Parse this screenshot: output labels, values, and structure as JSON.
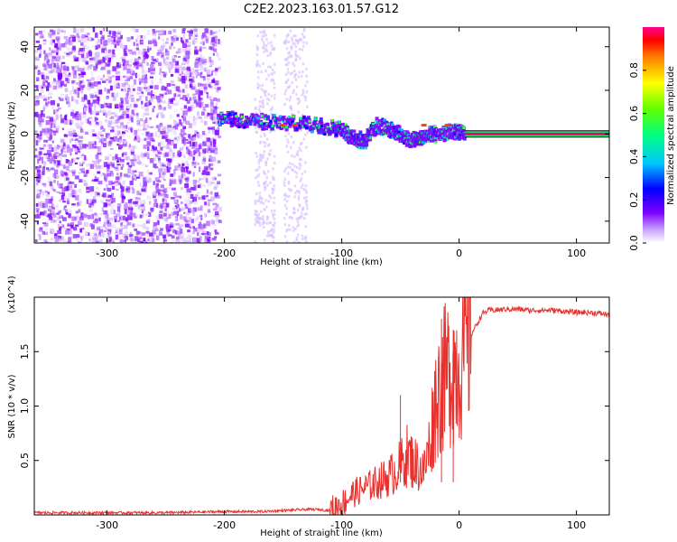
{
  "figure": {
    "title": "C2E2.2023.163.01.57.G12"
  },
  "chart_data": [
    {
      "type": "heatmap",
      "xlabel": "Height of straight line (km)",
      "ylabel": "Frequency (Hz)",
      "xlim": [
        -362,
        128
      ],
      "ylim": [
        -50,
        49
      ],
      "x_ticks": [
        -300,
        -200,
        -100,
        0,
        100
      ],
      "y_ticks": [
        -40,
        -20,
        0,
        20,
        40
      ],
      "colorbar": {
        "label": "Normalized spectral amplitude",
        "range": [
          0.0,
          1.0
        ],
        "ticks": [
          0.0,
          0.2,
          0.4,
          0.6,
          0.8
        ],
        "colormap": "rainbow (violet to red to magenta)"
      },
      "features": {
        "noise_region_x": [
          -362,
          -205
        ],
        "noise_gaps_x": [
          [
            -175,
            -158
          ],
          [
            -150,
            -130
          ]
        ],
        "signal_trace": [
          {
            "x": -205,
            "y": 7
          },
          {
            "x": -180,
            "y": 6
          },
          {
            "x": -150,
            "y": 5
          },
          {
            "x": -120,
            "y": 4
          },
          {
            "x": -100,
            "y": 2
          },
          {
            "x": -90,
            "y": -2
          },
          {
            "x": -80,
            "y": -3
          },
          {
            "x": -70,
            "y": 4
          },
          {
            "x": -55,
            "y": 1
          },
          {
            "x": -40,
            "y": -3
          },
          {
            "x": -30,
            "y": -1
          },
          {
            "x": -20,
            "y": 0
          },
          {
            "x": -5,
            "y": 1
          },
          {
            "x": 5,
            "y": 0
          },
          {
            "x": 128,
            "y": 0
          }
        ],
        "tone_band_x": [
          5,
          128
        ],
        "tone_frequency": 0
      }
    },
    {
      "type": "line",
      "xlabel": "Height of straight line (km)",
      "ylabel": "SNR (10 * v/v)",
      "y_multiplier": "(x10^4)",
      "xlim": [
        -362,
        128
      ],
      "ylim": [
        0,
        2.0
      ],
      "x_ticks": [
        -300,
        -200,
        -100,
        0,
        100
      ],
      "y_ticks": [
        0.5,
        1.0,
        1.5
      ],
      "y_tick_labels": [
        "0.5",
        "1.0",
        "1.5"
      ],
      "color": "#e8302d",
      "series": [
        {
          "x": [
            -362,
            -300,
            -250,
            -200,
            -170,
            -150,
            -130,
            -120,
            -110,
            -100,
            -90,
            -80,
            -70,
            -60,
            -50,
            -45,
            -40,
            -35,
            -30,
            -25,
            -20,
            -15,
            -10,
            -5,
            0,
            5,
            10,
            15,
            20,
            25,
            30,
            40,
            50,
            60,
            70,
            80,
            90,
            100,
            110,
            120,
            128
          ],
          "values": [
            0.02,
            0.02,
            0.02,
            0.03,
            0.03,
            0.04,
            0.05,
            0.05,
            0.04,
            0.1,
            0.2,
            0.25,
            0.3,
            0.35,
            0.45,
            0.55,
            0.5,
            0.45,
            0.4,
            0.65,
            1.05,
            1.2,
            1.3,
            1.35,
            1.4,
            1.5,
            1.65,
            1.75,
            1.85,
            1.88,
            1.88,
            1.89,
            1.89,
            1.88,
            1.88,
            1.88,
            1.87,
            1.86,
            1.86,
            1.85,
            1.84
          ]
        }
      ],
      "peaks": [
        {
          "x": -50,
          "y": 1.1
        },
        {
          "x": -15,
          "y": 1.8
        },
        {
          "x": -5,
          "y": 1.7
        }
      ]
    }
  ]
}
